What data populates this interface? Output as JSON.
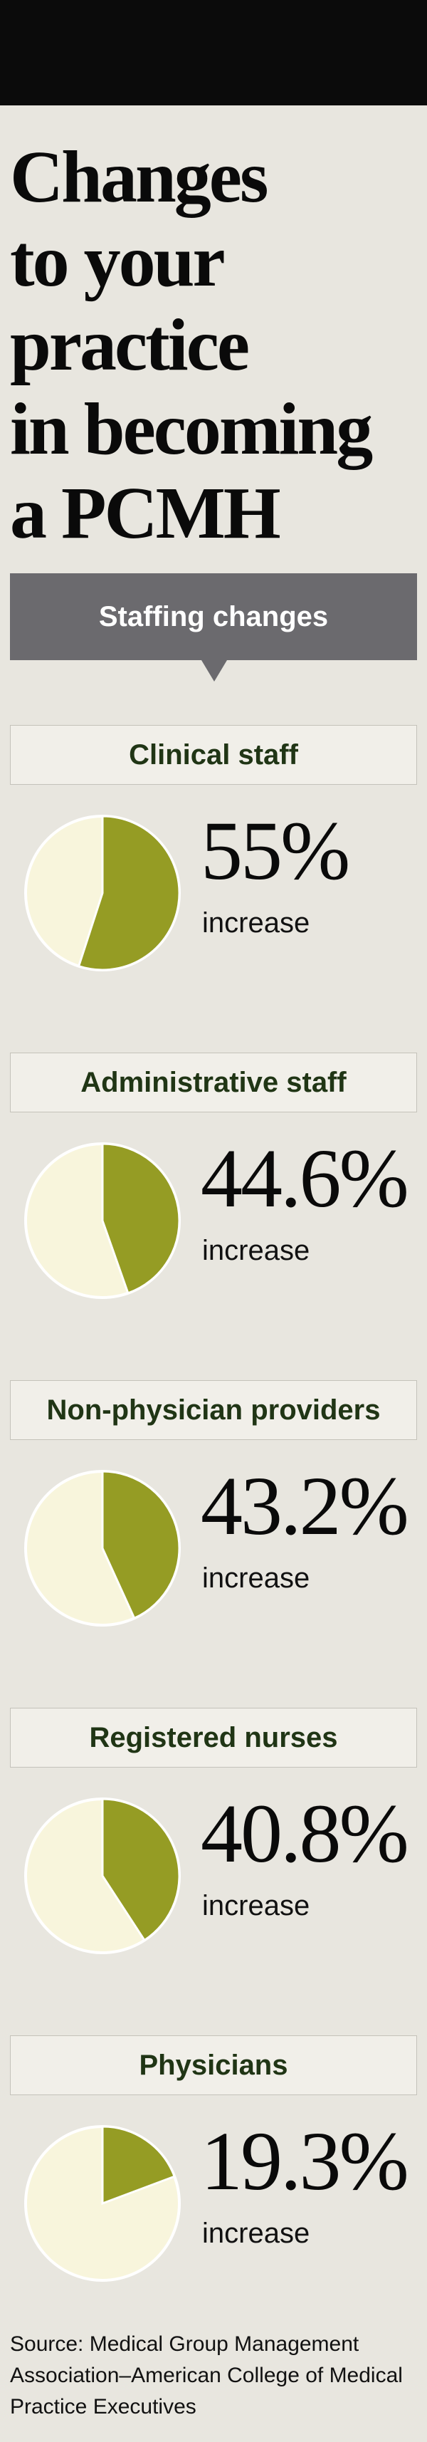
{
  "title_lines": [
    "Changes",
    "to your",
    "practice",
    "in becoming",
    "a PCMH"
  ],
  "banner": "Staffing changes",
  "colors": {
    "pie_fill": "#959c24",
    "pie_base": "#f8f5dc",
    "pie_stroke": "#ffffff"
  },
  "chart_data": {
    "type": "pie",
    "items": [
      {
        "category": "Clinical staff",
        "value": 55,
        "display": "55%",
        "unit_label": "increase"
      },
      {
        "category": "Administrative staff",
        "value": 44.6,
        "display": "44.6%",
        "unit_label": "increase"
      },
      {
        "category": "Non-physician providers",
        "value": 43.2,
        "display": "43.2%",
        "unit_label": "increase"
      },
      {
        "category": "Registered nurses",
        "value": 40.8,
        "display": "40.8%",
        "unit_label": "increase"
      },
      {
        "category": "Physicians",
        "value": 19.3,
        "display": "19.3%",
        "unit_label": "increase"
      }
    ]
  },
  "source": "Source: Medical Group Management Association–American College of Medical Practice Executives"
}
